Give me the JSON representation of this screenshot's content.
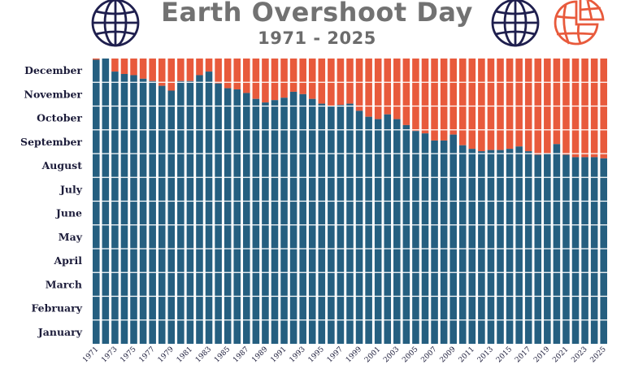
{
  "title": "Earth Overshoot Day",
  "subtitle": "1971 - 2025",
  "colors": {
    "consumed": "#255f80",
    "overshoot": "#e85a3c",
    "title": "#727272",
    "globe_navy": "#1f1f4e",
    "globe_red": "#e85a3c"
  },
  "icons": [
    "globe-icon",
    "globe-icon",
    "broken-globe-icon"
  ],
  "chart_data": {
    "type": "bar",
    "ylabels": [
      "January",
      "February",
      "March",
      "April",
      "May",
      "June",
      "July",
      "August",
      "September",
      "October",
      "November",
      "December"
    ],
    "ylim": [
      1,
      13
    ],
    "x_tick_labels": [
      "1971",
      "1973",
      "1975",
      "1977",
      "1979",
      "1981",
      "1983",
      "1985",
      "1987",
      "1989",
      "1991",
      "1993",
      "1995",
      "1997",
      "1999",
      "2001",
      "2003",
      "2005",
      "2007",
      "2009",
      "2011",
      "2013",
      "2015",
      "2017",
      "2019",
      "2021",
      "2023",
      "2025"
    ],
    "x": [
      1971,
      1972,
      1973,
      1974,
      1975,
      1976,
      1977,
      1978,
      1979,
      1980,
      1981,
      1982,
      1983,
      1984,
      1985,
      1986,
      1987,
      1988,
      1989,
      1990,
      1991,
      1992,
      1993,
      1994,
      1995,
      1996,
      1997,
      1998,
      1999,
      2000,
      2001,
      2002,
      2003,
      2004,
      2005,
      2006,
      2007,
      2008,
      2009,
      2010,
      2011,
      2012,
      2013,
      2014,
      2015,
      2016,
      2017,
      2018,
      2019,
      2020,
      2021,
      2022,
      2023,
      2024,
      2025
    ],
    "series": [
      {
        "values": [
          12.95,
          13.0,
          12.45,
          12.35,
          12.3,
          12.15,
          12.05,
          11.85,
          11.65,
          12.05,
          12.05,
          12.3,
          12.45,
          11.95,
          11.75,
          11.7,
          11.55,
          11.3,
          11.15,
          11.25,
          11.35,
          11.6,
          11.5,
          11.3,
          11.1,
          11.0,
          11.05,
          11.1,
          10.8,
          10.55,
          10.45,
          10.65,
          10.45,
          10.2,
          9.95,
          9.85,
          9.55,
          9.55,
          9.8,
          9.35,
          9.2,
          9.1,
          9.15,
          9.15,
          9.2,
          9.3,
          9.1,
          8.95,
          9.0,
          9.4,
          8.95,
          8.85,
          8.85,
          8.85,
          8.8
        ]
      }
    ],
    "legend": "none",
    "grid": false
  }
}
